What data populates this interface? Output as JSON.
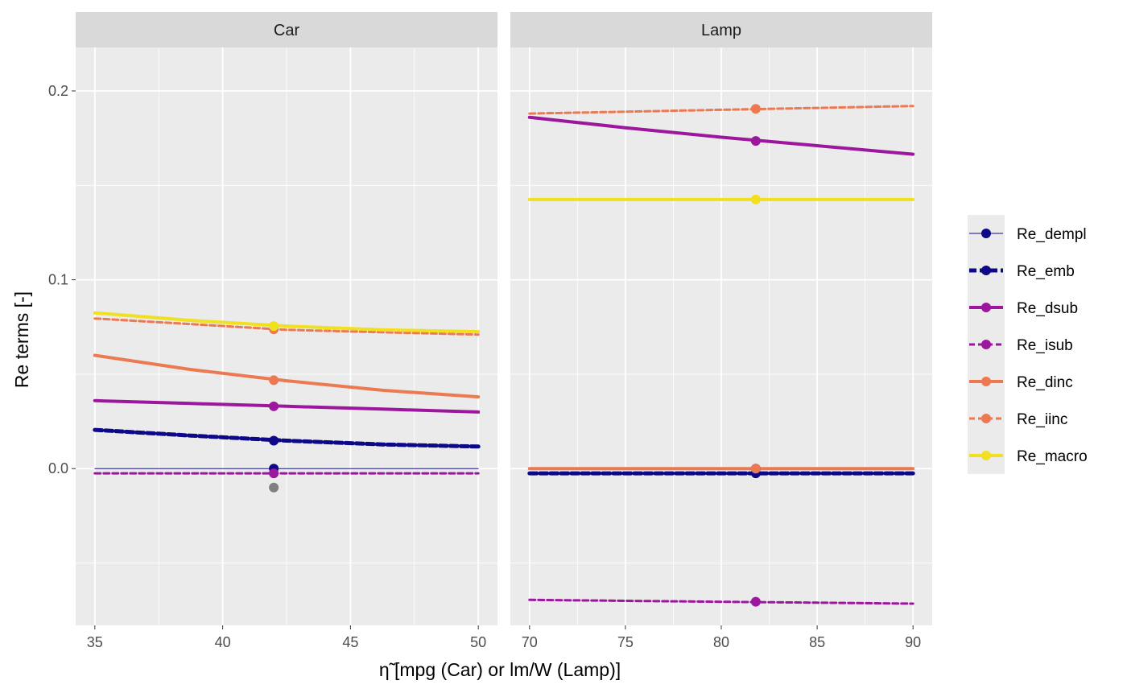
{
  "chart_data": {
    "type": "line",
    "xlabel": "η̃ [mpg (Car) or lm/W (Lamp)]",
    "ylabel": "Re terms [-]",
    "ylim": [
      -0.083,
      0.223
    ],
    "y_ticks": [
      0.0,
      0.1,
      0.2
    ],
    "y_tick_labels": [
      "0.0",
      "0.1",
      "0.2"
    ],
    "grid": true,
    "legend_position": "right",
    "facets": [
      {
        "name": "Car",
        "xlim": [
          34.25,
          50.75
        ],
        "x_ticks": [
          35,
          40,
          45,
          50
        ],
        "x_tick_labels": [
          "35",
          "40",
          "45",
          "50"
        ],
        "marker_x": 42,
        "series": [
          {
            "name": "Re_dempl",
            "x": [
              35,
              50
            ],
            "y": [
              0.0,
              0.0
            ],
            "marker_y": 0.0
          },
          {
            "name": "Re_emb",
            "x": [
              35,
              38.75,
              42.5,
              46.25,
              50
            ],
            "y": [
              0.0205,
              0.0175,
              0.0148,
              0.0128,
              0.0117
            ],
            "marker_y": 0.0148
          },
          {
            "name": "Re_dsub",
            "x": [
              35,
              38.75,
              42.5,
              46.25,
              50
            ],
            "y": [
              0.036,
              0.0345,
              0.033,
              0.0315,
              0.03
            ],
            "marker_y": 0.033
          },
          {
            "name": "Re_isub",
            "x": [
              35,
              50
            ],
            "y": [
              -0.0025,
              -0.0025
            ],
            "marker_y": -0.0025
          },
          {
            "name": "Re_dinc",
            "x": [
              35,
              38.75,
              42.5,
              46.25,
              50
            ],
            "y": [
              0.06,
              0.0525,
              0.0465,
              0.0415,
              0.038
            ],
            "marker_y": 0.0468
          },
          {
            "name": "Re_iinc",
            "x": [
              35,
              38.75,
              42.5,
              46.25,
              50
            ],
            "y": [
              0.0795,
              0.0765,
              0.0735,
              0.0722,
              0.071
            ],
            "marker_y": 0.0738
          },
          {
            "name": "Re_macro",
            "x": [
              35,
              38.75,
              42.5,
              46.25,
              50
            ],
            "y": [
              0.0825,
              0.0785,
              0.0755,
              0.0735,
              0.0725
            ],
            "marker_y": 0.0755
          }
        ],
        "extra_points": [
          {
            "x": 42,
            "y": -0.01,
            "color": "#808080"
          }
        ]
      },
      {
        "name": "Lamp",
        "xlim": [
          69,
          91
        ],
        "x_ticks": [
          70,
          75,
          80,
          85,
          90
        ],
        "x_tick_labels": [
          "70",
          "75",
          "80",
          "85",
          "90"
        ],
        "marker_x": 81.8,
        "series": [
          {
            "name": "Re_dempl",
            "x": [
              70,
              90
            ],
            "y": [
              0.0,
              0.0
            ],
            "marker_y": 0.0
          },
          {
            "name": "Re_emb",
            "x": [
              70,
              90
            ],
            "y": [
              -0.0025,
              -0.0025
            ],
            "marker_y": -0.0025
          },
          {
            "name": "Re_dsub",
            "x": [
              70,
              75,
              80,
              85,
              90
            ],
            "y": [
              0.186,
              0.1805,
              0.1755,
              0.171,
              0.1665
            ],
            "marker_y": 0.1735
          },
          {
            "name": "Re_isub",
            "x": [
              70,
              75,
              80,
              85,
              90
            ],
            "y": [
              -0.0695,
              -0.07,
              -0.0705,
              -0.071,
              -0.0715
            ],
            "marker_y": -0.0705
          },
          {
            "name": "Re_dinc",
            "x": [
              70,
              90
            ],
            "y": [
              0.0,
              0.0
            ],
            "marker_y": 0.0
          },
          {
            "name": "Re_iinc",
            "x": [
              70,
              75,
              80,
              85,
              90
            ],
            "y": [
              0.188,
              0.189,
              0.19,
              0.191,
              0.192
            ],
            "marker_y": 0.1905
          },
          {
            "name": "Re_macro",
            "x": [
              70,
              90
            ],
            "y": [
              0.1425,
              0.1425
            ],
            "marker_y": 0.1425
          }
        ],
        "extra_points": []
      }
    ],
    "legend": [
      {
        "name": "Re_dempl",
        "color": "#0d0887",
        "width": 1,
        "dash": "solid"
      },
      {
        "name": "Re_emb",
        "color": "#0d0887",
        "width": 5,
        "dash": "dash"
      },
      {
        "name": "Re_dsub",
        "color": "#9c179e",
        "width": 4,
        "dash": "solid"
      },
      {
        "name": "Re_isub",
        "color": "#9c179e",
        "width": 3,
        "dash": "dash"
      },
      {
        "name": "Re_dinc",
        "color": "#ed7953",
        "width": 4,
        "dash": "solid"
      },
      {
        "name": "Re_iinc",
        "color": "#ed7953",
        "width": 3,
        "dash": "dash"
      },
      {
        "name": "Re_macro",
        "color": "#f0e01f",
        "width": 4,
        "dash": "solid"
      }
    ]
  }
}
